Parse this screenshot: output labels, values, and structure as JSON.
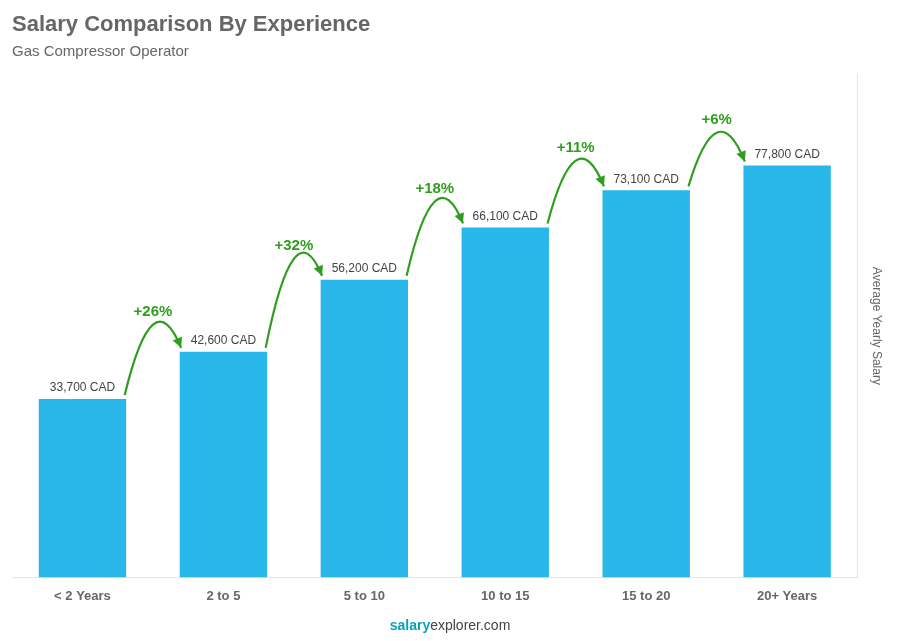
{
  "chart_data": {
    "type": "bar",
    "title": "Salary Comparison By Experience",
    "subtitle": "Gas Compressor Operator",
    "categories": [
      "< 2 Years",
      "2 to 5",
      "5 to 10",
      "10 to 15",
      "15 to 20",
      "20+ Years"
    ],
    "values": [
      33700,
      42600,
      56200,
      66100,
      73100,
      77800
    ],
    "value_labels": [
      "33,700 CAD",
      "42,600 CAD",
      "56,200 CAD",
      "66,100 CAD",
      "73,100 CAD",
      "77,800 CAD"
    ],
    "data_labels": true,
    "color": "#29B6E8",
    "ylabel": "Average Yearly Salary",
    "ylim": [
      0,
      95000
    ],
    "annotations": [
      "+26%",
      "+32%",
      "+18%",
      "+11%",
      "+6%"
    ],
    "footer": [
      "salary",
      "explorer.com"
    ],
    "grid": false,
    "tick_labels": "x"
  }
}
